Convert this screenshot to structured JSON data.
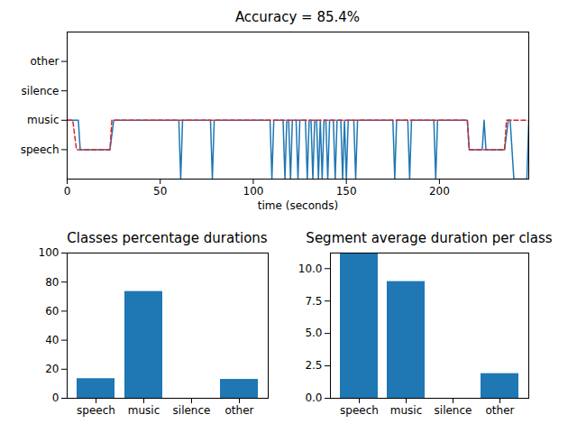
{
  "chart_data": [
    {
      "type": "line",
      "title": "Accuracy = 85.4%",
      "xlabel": "time (seconds)",
      "xlim": [
        0,
        248
      ],
      "xticks": [
        0,
        50,
        100,
        150,
        200
      ],
      "ylim": [
        -1,
        4
      ],
      "yticks": [
        {
          "value": 0,
          "label": "speech"
        },
        {
          "value": 1,
          "label": "music"
        },
        {
          "value": 2,
          "label": "silence"
        },
        {
          "value": 3,
          "label": "other"
        }
      ],
      "series": [
        {
          "color": "#1f77b4",
          "line_style": "solid",
          "x": [
            0,
            6,
            7,
            23,
            25,
            60,
            61,
            62,
            77,
            78,
            79,
            109,
            110,
            111,
            116,
            117,
            118,
            119,
            120,
            121,
            123,
            124,
            125,
            128,
            129,
            130,
            131,
            132,
            133,
            134,
            135,
            136,
            137,
            138,
            139,
            140,
            141,
            143,
            144,
            145,
            147,
            148,
            149,
            150,
            151,
            154,
            155,
            156,
            175,
            176,
            177,
            183,
            184,
            185,
            197,
            198,
            199,
            215,
            216,
            223,
            224,
            225,
            235,
            237,
            238,
            240,
            247,
            248
          ],
          "values": [
            1,
            1,
            0,
            0,
            1,
            1,
            -1,
            1,
            1,
            -1,
            1,
            1,
            -1,
            1,
            1,
            -1,
            1,
            1,
            -1,
            1,
            1,
            -1,
            1,
            1,
            -1,
            1,
            1,
            -1,
            1,
            1,
            -1,
            1,
            -1,
            1,
            1,
            -1,
            1,
            1,
            -1,
            1,
            1,
            -1,
            1,
            -1,
            1,
            1,
            -1,
            1,
            1,
            -1,
            1,
            1,
            -1,
            1,
            1,
            -1,
            1,
            1,
            0,
            0,
            1,
            0,
            0,
            1,
            1,
            -1,
            -1,
            1
          ]
        },
        {
          "color": "#d62728",
          "line_style": "dashed",
          "x": [
            0,
            3,
            5,
            23,
            24,
            215,
            216,
            235,
            236,
            248
          ],
          "values": [
            1,
            1,
            0,
            0,
            1,
            1,
            0,
            0,
            1,
            1
          ]
        }
      ]
    },
    {
      "type": "bar",
      "title": "Classes percentage durations",
      "categories": [
        "speech",
        "music",
        "silence",
        "other"
      ],
      "values": [
        13.5,
        73.5,
        0,
        13
      ],
      "color": "#1f77b4",
      "ylim": [
        0,
        100
      ],
      "yticks": [
        0,
        20,
        40,
        60,
        80,
        100
      ]
    },
    {
      "type": "bar",
      "title": "Segment average duration per class",
      "categories": [
        "speech",
        "music",
        "silence",
        "other"
      ],
      "values": [
        11.2,
        9,
        0,
        1.9
      ],
      "color": "#1f77b4",
      "ylim": [
        0,
        11.2
      ],
      "yticks": [
        {
          "value": 0,
          "label": "0.0"
        },
        2.5,
        {
          "value": 5,
          "label": "5.0"
        },
        7.5,
        {
          "value": 10,
          "label": "10.0"
        }
      ]
    }
  ]
}
